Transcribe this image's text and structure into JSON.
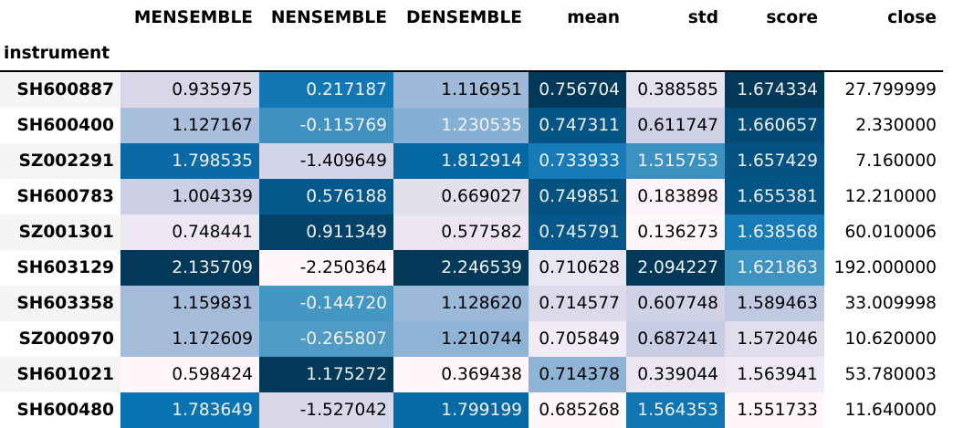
{
  "table": {
    "index_name": "instrument",
    "columns": [
      "MENSEMBLE",
      "NENSEMBLE",
      "DENSEMBLE",
      "mean",
      "std",
      "score",
      "close"
    ],
    "rows": [
      {
        "label": "SH600887",
        "values": [
          "0.935975",
          "0.217187",
          "1.116951",
          "0.756704",
          "0.388585",
          "1.674334",
          "27.799999"
        ]
      },
      {
        "label": "SH600400",
        "values": [
          "1.127167",
          "-0.115769",
          "1.230535",
          "0.747311",
          "0.611747",
          "1.660657",
          "2.330000"
        ]
      },
      {
        "label": "SZ002291",
        "values": [
          "1.798535",
          "-1.409649",
          "1.812914",
          "0.733933",
          "1.515753",
          "1.657429",
          "7.160000"
        ]
      },
      {
        "label": "SH600783",
        "values": [
          "1.004339",
          "0.576188",
          "0.669027",
          "0.749851",
          "0.183898",
          "1.655381",
          "12.210000"
        ]
      },
      {
        "label": "SZ001301",
        "values": [
          "0.748441",
          "0.911349",
          "0.577582",
          "0.745791",
          "0.136273",
          "1.638568",
          "60.010006"
        ]
      },
      {
        "label": "SH603129",
        "values": [
          "2.135709",
          "-2.250364",
          "2.246539",
          "0.710628",
          "2.094227",
          "1.621863",
          "192.000000"
        ]
      },
      {
        "label": "SH603358",
        "values": [
          "1.159831",
          "-0.144720",
          "1.128620",
          "0.714577",
          "0.607748",
          "1.589463",
          "33.009998"
        ]
      },
      {
        "label": "SZ000970",
        "values": [
          "1.172609",
          "-0.265807",
          "1.210744",
          "0.705849",
          "0.687241",
          "1.572046",
          "10.620000"
        ]
      },
      {
        "label": "SH601021",
        "values": [
          "0.598424",
          "1.175272",
          "0.369438",
          "0.714378",
          "0.339044",
          "1.563941",
          "53.780003"
        ]
      },
      {
        "label": "SH600480",
        "values": [
          "1.783649",
          "-1.527042",
          "1.799199",
          "0.685268",
          "1.564353",
          "1.551733",
          "11.640000"
        ]
      }
    ],
    "cell_styles": [
      [
        {
          "bg": "#d8d7e9",
          "fg": "#000000"
        },
        {
          "bg": "#1177b5",
          "fg": "#f1f1f1"
        },
        {
          "bg": "#9ebad8",
          "fg": "#000000"
        },
        {
          "bg": "#023858",
          "fg": "#f1f1f1"
        },
        {
          "bg": "#e6e2ef",
          "fg": "#000000"
        },
        {
          "bg": "#023858",
          "fg": "#f1f1f1"
        },
        {
          "bg": "#ffffff",
          "fg": "#000000"
        }
      ],
      [
        {
          "bg": "#a9bfdc",
          "fg": "#000000"
        },
        {
          "bg": "#4091c1",
          "fg": "#f1f1f1"
        },
        {
          "bg": "#86b0d3",
          "fg": "#f1f1f1"
        },
        {
          "bg": "#045585",
          "fg": "#f1f1f1"
        },
        {
          "bg": "#d0d1e6",
          "fg": "#000000"
        },
        {
          "bg": "#034b76",
          "fg": "#f1f1f1"
        },
        {
          "bg": "#ffffff",
          "fg": "#000000"
        }
      ],
      [
        {
          "bg": "#0a6aa8",
          "fg": "#f1f1f1"
        },
        {
          "bg": "#d4d4e8",
          "fg": "#000000"
        },
        {
          "bg": "#0567a1",
          "fg": "#f1f1f1"
        },
        {
          "bg": "#167bb6",
          "fg": "#f1f1f1"
        },
        {
          "bg": "#3b92c1",
          "fg": "#f1f1f1"
        },
        {
          "bg": "#045382",
          "fg": "#f1f1f1"
        },
        {
          "bg": "#ffffff",
          "fg": "#000000"
        }
      ],
      [
        {
          "bg": "#cccfe4",
          "fg": "#000000"
        },
        {
          "bg": "#05588c",
          "fg": "#f1f1f1"
        },
        {
          "bg": "#e3e0ee",
          "fg": "#000000"
        },
        {
          "bg": "#045280",
          "fg": "#f1f1f1"
        },
        {
          "bg": "#fcf4fa",
          "fg": "#000000"
        },
        {
          "bg": "#045585",
          "fg": "#f1f1f1"
        },
        {
          "bg": "#ffffff",
          "fg": "#000000"
        }
      ],
      [
        {
          "bg": "#ede8f3",
          "fg": "#000000"
        },
        {
          "bg": "#034268",
          "fg": "#f1f1f1"
        },
        {
          "bg": "#ebe6f2",
          "fg": "#000000"
        },
        {
          "bg": "#045788",
          "fg": "#f1f1f1"
        },
        {
          "bg": "#fff7fb",
          "fg": "#000000"
        },
        {
          "bg": "#167bb6",
          "fg": "#f1f1f1"
        },
        {
          "bg": "#ffffff",
          "fg": "#000000"
        }
      ],
      [
        {
          "bg": "#023858",
          "fg": "#f1f1f1"
        },
        {
          "bg": "#fff7fb",
          "fg": "#000000"
        },
        {
          "bg": "#023858",
          "fg": "#f1f1f1"
        },
        {
          "bg": "#eae6f1",
          "fg": "#000000"
        },
        {
          "bg": "#023858",
          "fg": "#f1f1f1"
        },
        {
          "bg": "#3d93c2",
          "fg": "#f1f1f1"
        },
        {
          "bg": "#ffffff",
          "fg": "#000000"
        }
      ],
      [
        {
          "bg": "#a4bcda",
          "fg": "#000000"
        },
        {
          "bg": "#4496c3",
          "fg": "#f1f1f1"
        },
        {
          "bg": "#9cb9d9",
          "fg": "#000000"
        },
        {
          "bg": "#dbdaeb",
          "fg": "#000000"
        },
        {
          "bg": "#d1d2e6",
          "fg": "#000000"
        },
        {
          "bg": "#bfc9e1",
          "fg": "#000000"
        },
        {
          "bg": "#ffffff",
          "fg": "#000000"
        }
      ],
      [
        {
          "bg": "#a5bddb",
          "fg": "#000000"
        },
        {
          "bg": "#509ac6",
          "fg": "#f1f1f1"
        },
        {
          "bg": "#8eb3d5",
          "fg": "#000000"
        },
        {
          "bg": "#f1ebf5",
          "fg": "#000000"
        },
        {
          "bg": "#c8cde4",
          "fg": "#000000"
        },
        {
          "bg": "#e0deed",
          "fg": "#000000"
        },
        {
          "bg": "#ffffff",
          "fg": "#000000"
        }
      ],
      [
        {
          "bg": "#fff7fb",
          "fg": "#000000"
        },
        {
          "bg": "#023858",
          "fg": "#f1f1f1"
        },
        {
          "bg": "#fff7fb",
          "fg": "#000000"
        },
        {
          "bg": "#8fb4d6",
          "fg": "#000000"
        },
        {
          "bg": "#ebe6f2",
          "fg": "#000000"
        },
        {
          "bg": "#eee9f3",
          "fg": "#000000"
        },
        {
          "bg": "#ffffff",
          "fg": "#000000"
        }
      ],
      [
        {
          "bg": "#0a73b2",
          "fg": "#f1f1f1"
        },
        {
          "bg": "#d9d8ea",
          "fg": "#000000"
        },
        {
          "bg": "#0569a5",
          "fg": "#f1f1f1"
        },
        {
          "bg": "#fff7fb",
          "fg": "#000000"
        },
        {
          "bg": "#0f76b3",
          "fg": "#f1f1f1"
        },
        {
          "bg": "#fff7fb",
          "fg": "#000000"
        },
        {
          "bg": "#ffffff",
          "fg": "#000000"
        }
      ]
    ]
  }
}
